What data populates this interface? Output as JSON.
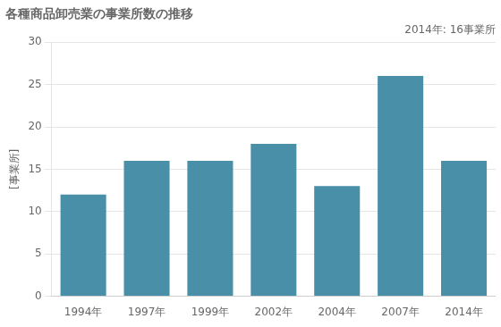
{
  "chart_data": {
    "type": "bar",
    "title": "各種商品卸売業の事業所数の推移",
    "ylabel": "[事業所]",
    "annotation": "2014年: 16事業所",
    "categories": [
      "1994年",
      "1997年",
      "1999年",
      "2002年",
      "2004年",
      "2007年",
      "2014年"
    ],
    "values": [
      12,
      16,
      16,
      18,
      13,
      26,
      16
    ],
    "color": "#4a8fa8",
    "ylim": [
      0,
      30
    ],
    "yticks": [
      0,
      5,
      10,
      15,
      20,
      25,
      30
    ],
    "grid": true
  }
}
